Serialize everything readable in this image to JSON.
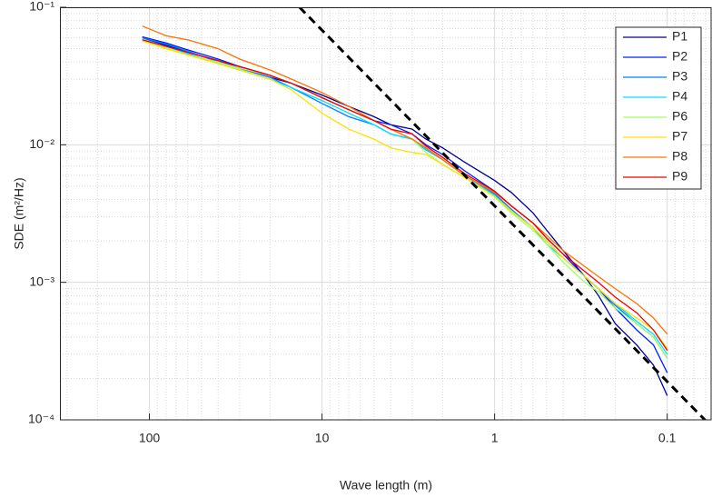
{
  "chart_data": {
    "type": "line",
    "xlabel": "Wave length (m)",
    "ylabel": "SDE (m²/Hz)",
    "log_x": true,
    "log_y": true,
    "x_reversed": true,
    "grid": true,
    "minor_grid": true,
    "legend": "top-right",
    "xlim": [
      330,
      0.055
    ],
    "ylim": [
      0.0001,
      0.1
    ],
    "xticks": [
      100,
      10,
      1,
      0.1
    ],
    "yticks": [
      {
        "value": 0.1,
        "label": "10⁻¹"
      },
      {
        "value": 0.01,
        "label": "10⁻²"
      },
      {
        "value": 0.001,
        "label": "10⁻³"
      },
      {
        "value": 0.0001,
        "label": "10⁻⁴"
      }
    ],
    "x": [
      110,
      80,
      60,
      40,
      30,
      20,
      15,
      10,
      7,
      5,
      4,
      3,
      2.5,
      2,
      1.5,
      1,
      0.8,
      0.6,
      0.5,
      0.4,
      0.3,
      0.25,
      0.2,
      0.15,
      0.12,
      0.1
    ],
    "series": [
      {
        "name": "P1",
        "color": "#00008f",
        "values": [
          0.06,
          0.053,
          0.047,
          0.041,
          0.036,
          0.031,
          0.028,
          0.023,
          0.019,
          0.016,
          0.014,
          0.013,
          0.011,
          0.0095,
          0.0075,
          0.0055,
          0.0045,
          0.0032,
          0.0024,
          0.0017,
          0.0011,
          0.0008,
          0.0005,
          0.00035,
          0.00025,
          0.00015
        ]
      },
      {
        "name": "P2",
        "color": "#0020ff",
        "values": [
          0.061,
          0.055,
          0.049,
          0.042,
          0.037,
          0.032,
          0.028,
          0.022,
          0.018,
          0.015,
          0.014,
          0.012,
          0.01,
          0.0085,
          0.0065,
          0.0046,
          0.0036,
          0.0027,
          0.0021,
          0.0016,
          0.0011,
          0.0009,
          0.00065,
          0.00045,
          0.00035,
          0.00022
        ]
      },
      {
        "name": "P3",
        "color": "#0080ff",
        "values": [
          0.06,
          0.054,
          0.048,
          0.04,
          0.036,
          0.031,
          0.026,
          0.02,
          0.016,
          0.014,
          0.012,
          0.011,
          0.0092,
          0.0078,
          0.006,
          0.0044,
          0.0034,
          0.0025,
          0.002,
          0.0015,
          0.0011,
          0.0009,
          0.00068,
          0.0005,
          0.0004,
          0.00028
        ]
      },
      {
        "name": "P4",
        "color": "#00dfff",
        "values": [
          0.057,
          0.052,
          0.046,
          0.039,
          0.035,
          0.03,
          0.026,
          0.021,
          0.017,
          0.014,
          0.012,
          0.011,
          0.0093,
          0.0078,
          0.006,
          0.0043,
          0.0033,
          0.0025,
          0.0019,
          0.0015,
          0.0011,
          0.0009,
          0.0007,
          0.00052,
          0.00042,
          0.0003
        ]
      },
      {
        "name": "P6",
        "color": "#a0ff60",
        "values": [
          0.059,
          0.051,
          0.045,
          0.04,
          0.036,
          0.032,
          0.028,
          0.022,
          0.018,
          0.015,
          0.013,
          0.011,
          0.0088,
          0.0072,
          0.0058,
          0.0042,
          0.0032,
          0.0024,
          0.0019,
          0.0014,
          0.001,
          0.00085,
          0.00065,
          0.0005,
          0.0004,
          0.00028
        ]
      },
      {
        "name": "P7",
        "color": "#ffe000",
        "values": [
          0.057,
          0.05,
          0.045,
          0.039,
          0.035,
          0.03,
          0.025,
          0.017,
          0.013,
          0.011,
          0.0095,
          0.0088,
          0.0085,
          0.0072,
          0.0058,
          0.0042,
          0.0033,
          0.0025,
          0.002,
          0.0015,
          0.0011,
          0.0009,
          0.0007,
          0.00055,
          0.00045,
          0.00033
        ]
      },
      {
        "name": "P8",
        "color": "#ff7000",
        "values": [
          0.073,
          0.062,
          0.058,
          0.05,
          0.042,
          0.035,
          0.03,
          0.024,
          0.019,
          0.015,
          0.013,
          0.011,
          0.0095,
          0.0078,
          0.006,
          0.0045,
          0.0036,
          0.0027,
          0.0022,
          0.0017,
          0.0013,
          0.0011,
          0.0009,
          0.0007,
          0.00055,
          0.00042
        ]
      },
      {
        "name": "P9",
        "color": "#ef0000",
        "values": [
          0.058,
          0.052,
          0.047,
          0.041,
          0.037,
          0.032,
          0.028,
          0.022,
          0.018,
          0.015,
          0.013,
          0.012,
          0.0098,
          0.0081,
          0.0062,
          0.0046,
          0.0036,
          0.0027,
          0.0021,
          0.0016,
          0.0012,
          0.001,
          0.00078,
          0.0006,
          0.00045,
          0.00032
        ]
      }
    ],
    "reference_line": {
      "x": [
        13.5,
        0.055
      ],
      "values": [
        0.1,
        8.85e-05
      ],
      "color": "#000000",
      "dashed": true
    }
  }
}
